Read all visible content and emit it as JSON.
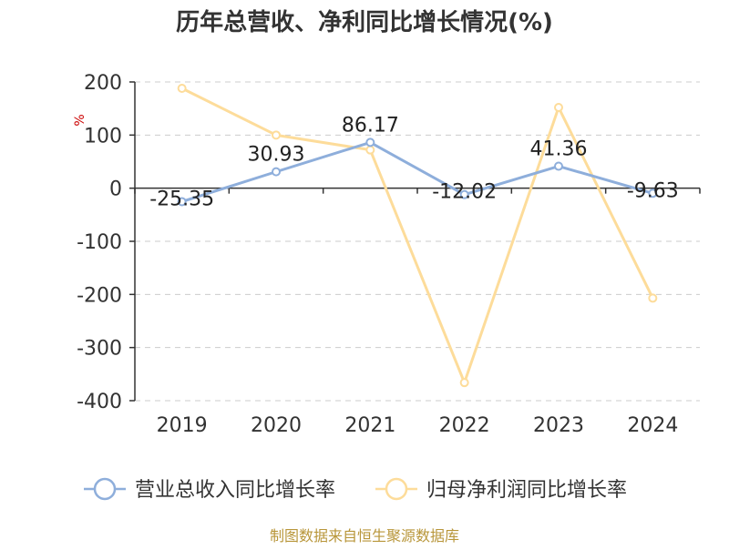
{
  "chart_data": {
    "type": "line",
    "title": "历年总营收、净利同比增长情况(%)",
    "ylabel": "%",
    "categories": [
      "2019",
      "2020",
      "2021",
      "2022",
      "2023",
      "2024"
    ],
    "ylim": [
      -400,
      200
    ],
    "yticks": [
      200,
      100,
      0,
      -100,
      -200,
      -300,
      -400
    ],
    "grid": true,
    "legend_position": "bottom",
    "series": [
      {
        "name": "营业总收入同比增长率",
        "color": "#8eaedb",
        "values": [
          -25.35,
          30.93,
          86.17,
          -12.02,
          41.36,
          -9.63
        ],
        "labels": [
          "-25.35",
          "30.93",
          "86.17",
          "-12.02",
          "41.36",
          "-9.63"
        ]
      },
      {
        "name": "归母净利润同比增长率",
        "color": "#fddc9a",
        "values": [
          188,
          100,
          72,
          -366,
          152,
          -207
        ]
      }
    ],
    "source": "制图数据来自恒生聚源数据库"
  }
}
